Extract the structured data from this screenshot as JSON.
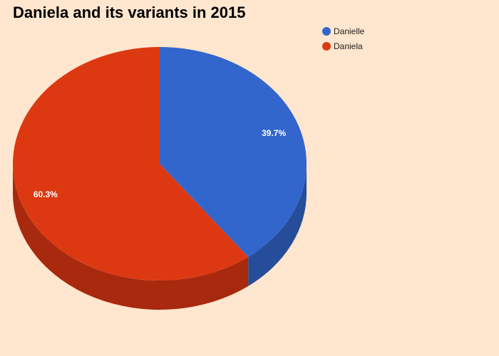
{
  "chart_data": {
    "type": "pie",
    "title": "Daniela and its variants in 2015",
    "is_3d": true,
    "legend_position": "top-right",
    "slices": [
      {
        "name": "Danielle",
        "percent": 39.7,
        "label": "39.7%",
        "color": "#3366CC",
        "side_color": "#254D99"
      },
      {
        "name": "Daniela",
        "percent": 60.3,
        "label": "60.3%",
        "color": "#DC3912",
        "side_color": "#A8290E"
      }
    ]
  },
  "background_color": "#FFE6CE"
}
